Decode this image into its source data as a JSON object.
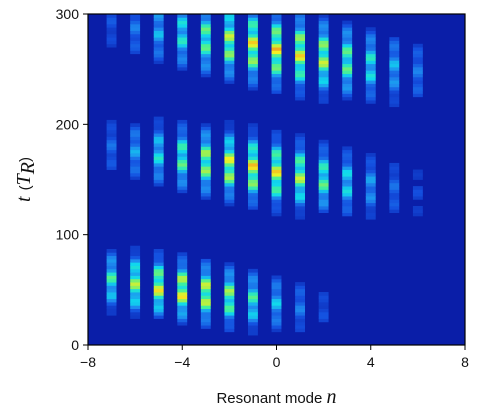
{
  "chart_data": {
    "type": "heatmap",
    "title": "",
    "xlabel": "Resonant mode n",
    "ylabel": "t (T_R)",
    "xlabel_parts": {
      "text": "Resonant mode ",
      "var": "n"
    },
    "ylabel_parts": {
      "var": "t",
      "open": "(",
      "sub_main": "T",
      "sub": "R",
      "close": ")"
    },
    "xlim": [
      -8,
      8
    ],
    "ylim": [
      0,
      300
    ],
    "xticks": [
      -8,
      -4,
      0,
      4,
      8
    ],
    "xtick_labels": [
      "−8",
      "−4",
      "0",
      "4",
      "8"
    ],
    "yticks": [
      0,
      100,
      200,
      300
    ],
    "ytick_labels": [
      "0",
      "100",
      "200",
      "300"
    ],
    "background_color": "#0a1ea8",
    "colormap": [
      "#0a1ea8",
      "#1450e0",
      "#1e8cf0",
      "#10d8ee",
      "#3ef0a0",
      "#a0f050",
      "#f5f020",
      "#f08020"
    ],
    "modes": [
      -7,
      -6,
      -5,
      -4,
      -3,
      -2,
      -1,
      0,
      1,
      2,
      3,
      4,
      5,
      6
    ],
    "bursts": [
      {
        "center_t": 50,
        "peak_n": -4,
        "spread": 3.2,
        "tilt": -3.0,
        "width_t": 32
      },
      {
        "center_t": 160,
        "peak_n": -1,
        "spread": 3.6,
        "tilt": -3.2,
        "width_t": 36
      },
      {
        "center_t": 268,
        "peak_n": 0,
        "spread": 3.8,
        "tilt": -3.4,
        "width_t": 40
      }
    ],
    "grid": false,
    "legend": "none"
  }
}
